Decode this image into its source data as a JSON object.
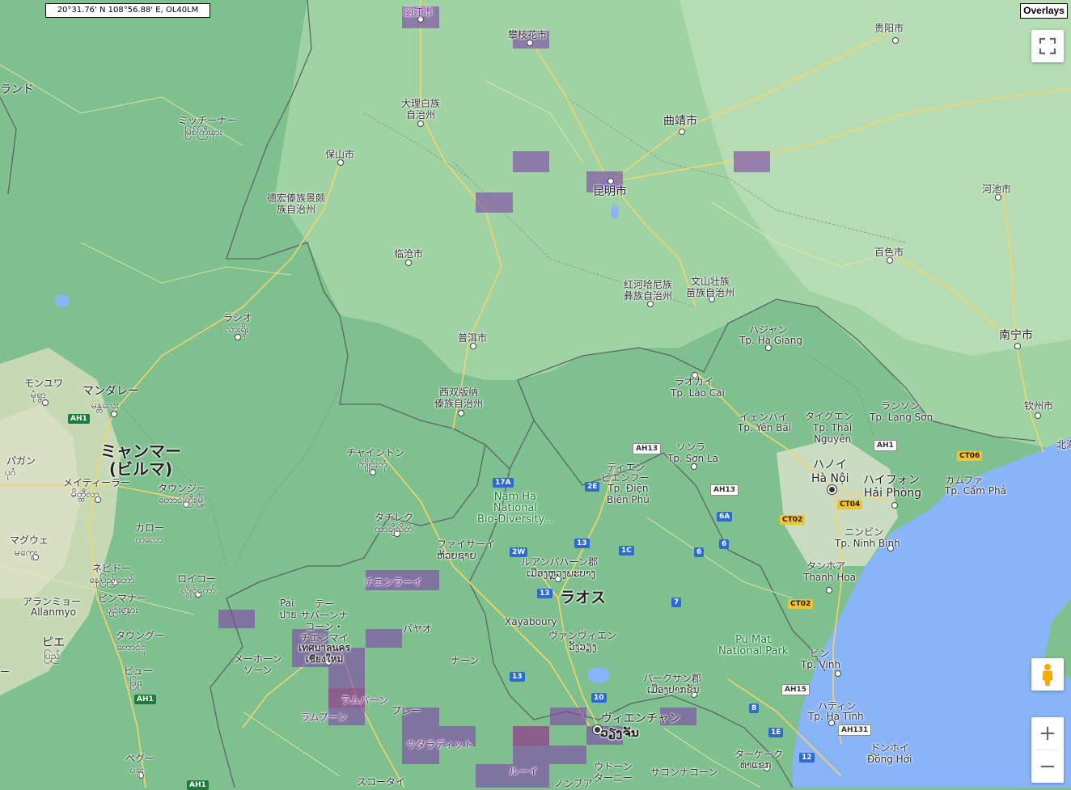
{
  "coordinates_text": "20°31.76' N 108°56.88' E, OL40LM",
  "overlays_button": "Overlays",
  "colors": {
    "land": "#7ec08e",
    "sea": "#8ab4f8",
    "border": "#5f6368",
    "road": "#f6d36a",
    "overlay": "#8046aa"
  },
  "controls": {
    "fullscreen_icon": "fullscreen-icon",
    "pegman_icon": "pegman-icon",
    "zoom_in": "+",
    "zoom_out": "−"
  },
  "labels": {
    "lijiang": "丽江市",
    "panzhihua": "攀枝花市",
    "guiyang": "贵阳市",
    "land_left": "ランド",
    "myitkyina_jp": "ミッチーナー",
    "myitkyina_my": "မြစ်ကြီးနား",
    "dali": "大理白族\n自治州",
    "qujing": "曲靖市",
    "baoshan": "保山市",
    "kunming": "昆明市",
    "dehong": "德宏傣族景颇\n族自治州",
    "hechi": "河池市",
    "lincang": "临沧市",
    "baise": "百色市",
    "honghe": "红河哈尼族\n彝族自治州",
    "wenshan": "文山壮族\n苗族自治州",
    "lashio_jp": "ラシオ",
    "lashio_my": "လားရှိုး",
    "hagiang_jp": "ハジャン",
    "hagiang_vn": "Tp. Hà Giang",
    "puer": "普洱市",
    "nanning": "南宁市",
    "monywa_jp": "モンユワ",
    "monywa_my": "မုံရွာ",
    "mandalay_jp": "マンダレー",
    "mandalay_my": "မန္တလေး",
    "laocai_jp": "ラオカイ",
    "laocai_vn": "Tp. Lào Cai",
    "xishuangbanna": "西双版纳\n傣族自治州",
    "yenbai_jp": "イェンバイ",
    "yenbai_vn": "Tp. Yên Bái",
    "thainguyen_jp": "タイグエン",
    "thainguyen_vn": "Tp. Thái\nNguyên",
    "langson_jp": "ランソン",
    "langson_vn": "Tp. Lạng Sơn",
    "qinzhou": "钦州市",
    "beihai": "北海",
    "myanmar": "ミャンマー\n(ビルマ)",
    "kengtung_jp": "チャイントン",
    "kengtung_my": "ကျိုင်းတုံ",
    "sonla_jp": "ソンラ",
    "sonla_vn": "Tp. Sơn La",
    "hanoi_jp": "ハノイ",
    "hanoi_vn": "Hà Nội",
    "haiphong_jp": "ハイフォン",
    "haiphong_vn": "Hải Phòng",
    "camphaa_jp": "カムファ",
    "camphaa_vn": "Tp. Cẩm Phả",
    "pagan_jp": "パガン",
    "pagan_my": "ပုဂံ",
    "meiktila_jp": "メイティーラー",
    "meiktila_my": "မိတ္ထီလာ",
    "taunggyi_jp": "タウンジー",
    "taunggyi_my": "တောင်ကြီးမြို့",
    "dienbien_jp1": "ディエン",
    "dienbien_jp2": "ビエンフー",
    "dienbien_vn": "Tp. Điện\nBiên Phủ",
    "namha": "Nam Ha\nNational\nBio-Diversity...",
    "tachileik_jp": "タチレク",
    "tachileik_my": "တာချီလိတ်",
    "kalaw_jp": "カロー",
    "kalaw_my": "ကလော",
    "magway_jp": "マグウェ",
    "magway_my": "မကွေး",
    "huayxay_jp": "ファイサーイ",
    "huayxay_lo": "ຫ້ວຍຊາຍ",
    "ninhbinh_jp": "ニンビン",
    "ninhbinh_vn": "Tp. Ninh Bình",
    "luangprabang_jp": "ルアンパバーン郡",
    "luangprabang_lo": "ເມືອງຫຼວງພະບາງ",
    "thanhhoa_jp": "タンホア",
    "thanhhoa_vn": "Thanh Hoá",
    "nyaungoo_jp": "ネピドー",
    "nyaungoo_my": "နေပြည်တော်",
    "loikaw_jp": "ロイコー",
    "loikaw_my": "လွိုင်ကော်",
    "chiangrai": "チエンラーイ",
    "pinmana_jp": "ピンマナー",
    "pinmana_my": "ပျဉ်းမနား",
    "allanmyo_jp": "アランミョー",
    "allanmyo_en": "Allanmyo",
    "pai_en": "Pai",
    "pai_th": "ปาย",
    "thesaban": "テー\nサバーンナ\nコーン・\nチエンマイ",
    "chiangmai_th": "เทศบาลนคร\nเชียงใหม่",
    "phayao": "パヤオ",
    "laos": "ラオス",
    "xayaboury": "Xayaboury",
    "vangvieng_jp": "ヴァンヴィエン",
    "vangvieng_lo": "ວັງວຽງ",
    "pumat": "Pu Mat\nNational Park",
    "taungoo_jp": "タウングー",
    "taungoo_my": "တောင်ငူ",
    "pyay_jp": "ピエ",
    "pyay_my": "ပြည်",
    "maehongson": "メーホーン\nソーン",
    "nan": "ナーン",
    "vinh_jp": "ビン",
    "vinh_vn": "Tp. Vinh",
    "paksan_jp": "パークサン郡",
    "paksan_lo": "ເມືອງປາກຊັນ",
    "pyu_jp": "ピュー",
    "pyu_my": "ဖြူး",
    "lamphun": "ラムパーン",
    "lamphun2": "ラムプーン",
    "phrae": "プレー",
    "vientiane_jp": "ヴィエンチャン",
    "vientiane_lo": "ວຽງຈັນ",
    "hatinh_jp": "ハティン",
    "hatinh_vn": "Tp. Hà Tĩnh",
    "uttaradit": "ウタラディット",
    "pegu_jp": "ペグー",
    "pegu_my": "ပဲခူး",
    "thakhek_jp": "ターケーク",
    "thakhek_lo": "ທ່າແຂກ",
    "dongha_jp": "ドンホイ",
    "dongha_vn": "Đồng Hới",
    "loei": "ルーイ",
    "udon_jp": "ウドーン\nターニー",
    "sakon": "サコンナコーン",
    "sukhothai": "スコータイ",
    "nongkhai": "ノンブア",
    "ee": "ー",
    "e_left": "ー"
  },
  "shields": {
    "ah1_a": "AH1",
    "ah1_b": "AH1",
    "ah1_c": "AH1",
    "ah13_a": "AH13",
    "ah13_b": "AH13",
    "ah1_vn": "AH1",
    "ct06": "CT06",
    "ct04": "CT04",
    "ct02_a": "CT02",
    "ct02_b": "CT02",
    "r17a": "17A",
    "r2e": "2E",
    "r6a": "6A",
    "r6_a": "6",
    "r6_b": "6",
    "r13_a": "13",
    "r13_b": "13",
    "r13_c": "13",
    "r1c": "1C",
    "r2w": "2W",
    "r7": "7",
    "r10": "10",
    "r8": "8",
    "r1e": "1E",
    "r12": "12",
    "ah15": "AH15",
    "ah131": "AH131",
    "ah1_bot": "AH1"
  }
}
